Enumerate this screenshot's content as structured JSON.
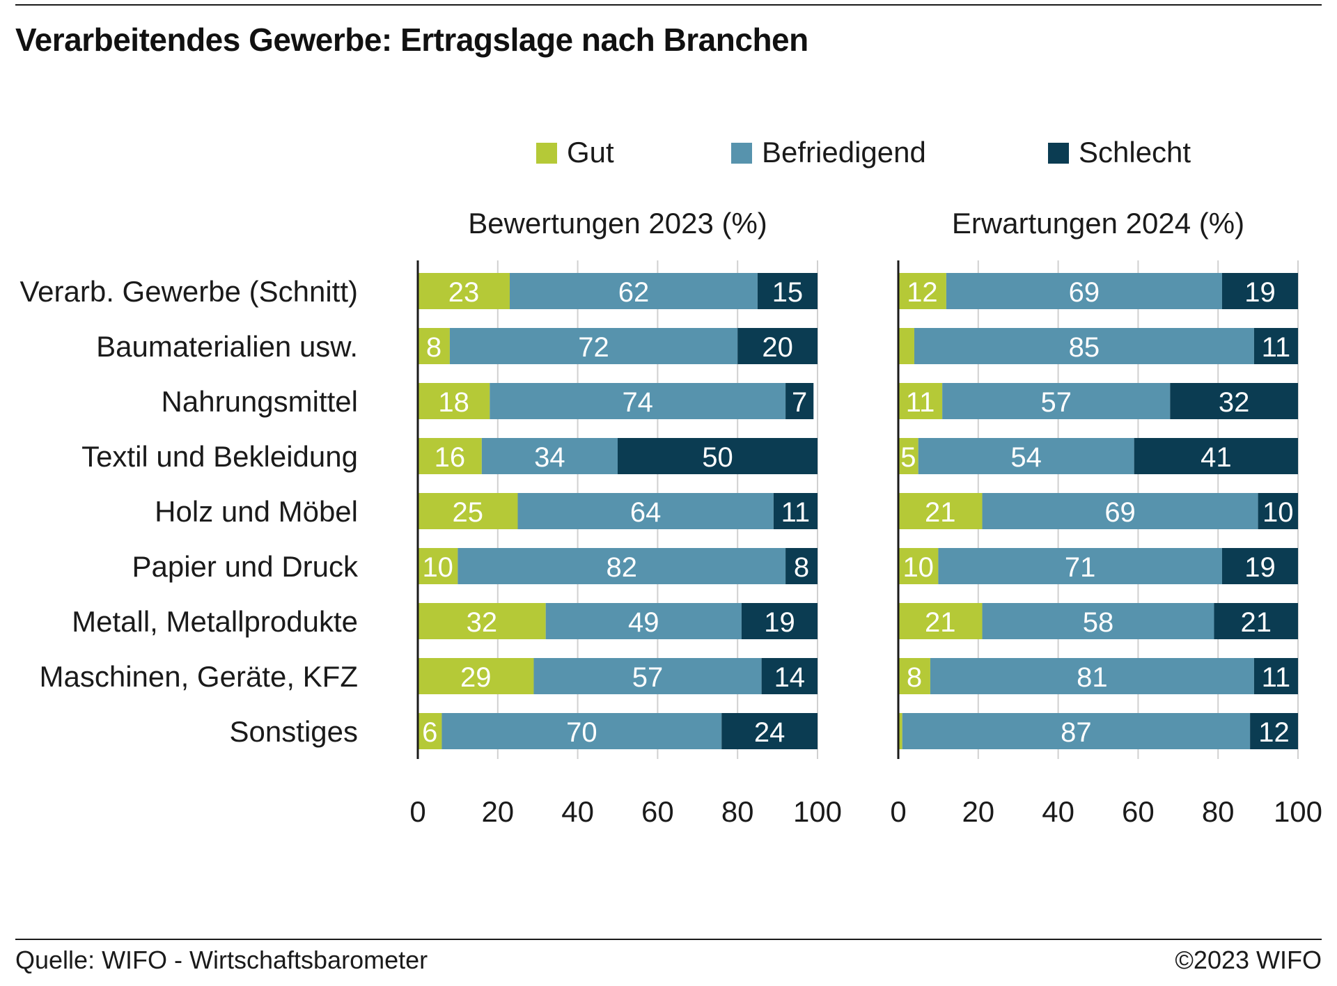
{
  "title": "Verarbeitendes Gewerbe: Ertragslage nach Branchen",
  "source": "Quelle: WIFO - Wirtschaftsbarometer",
  "copyright": "©2023 WIFO",
  "colors": {
    "gut": "#b5c937",
    "befriedigend": "#5793ad",
    "schlecht": "#0b3c52",
    "axis": "#1a1a1a",
    "grid": "#d0d0d0"
  },
  "chart_data": {
    "type": "bar",
    "orientation": "horizontal",
    "stacked": true,
    "legend": {
      "position": "top",
      "entries": [
        "Gut",
        "Befriedigend",
        "Schlecht"
      ]
    },
    "categories": [
      "Verarb. Gewerbe (Schnitt)",
      "Baumaterialien usw.",
      "Nahrungsmittel",
      "Textil und Bekleidung",
      "Holz und Möbel",
      "Papier und Druck",
      "Metall, Metallprodukte",
      "Maschinen, Geräte, KFZ",
      "Sonstiges"
    ],
    "xlim": [
      0,
      100
    ],
    "xticks": [
      0,
      20,
      40,
      60,
      80,
      100
    ],
    "grid": true,
    "panels": [
      {
        "title": "Bewertungen 2023 (%)",
        "series": [
          {
            "name": "Gut",
            "values": [
              23,
              8,
              18,
              16,
              25,
              10,
              32,
              29,
              6
            ]
          },
          {
            "name": "Befriedigend",
            "values": [
              62,
              72,
              74,
              34,
              64,
              82,
              49,
              57,
              70
            ]
          },
          {
            "name": "Schlecht",
            "values": [
              15,
              20,
              7,
              50,
              11,
              8,
              19,
              14,
              24
            ]
          }
        ]
      },
      {
        "title": "Erwartungen 2024 (%)",
        "series": [
          {
            "name": "Gut",
            "values": [
              12,
              4,
              11,
              5,
              21,
              10,
              21,
              8,
              1
            ]
          },
          {
            "name": "Befriedigend",
            "values": [
              69,
              85,
              57,
              54,
              69,
              71,
              58,
              81,
              87
            ]
          },
          {
            "name": "Schlecht",
            "values": [
              19,
              11,
              32,
              41,
              10,
              19,
              21,
              11,
              12
            ]
          }
        ],
        "hidden_labels": [
          [],
          [
            0
          ],
          [],
          [],
          [],
          [],
          [],
          [],
          [
            0
          ]
        ]
      }
    ]
  }
}
